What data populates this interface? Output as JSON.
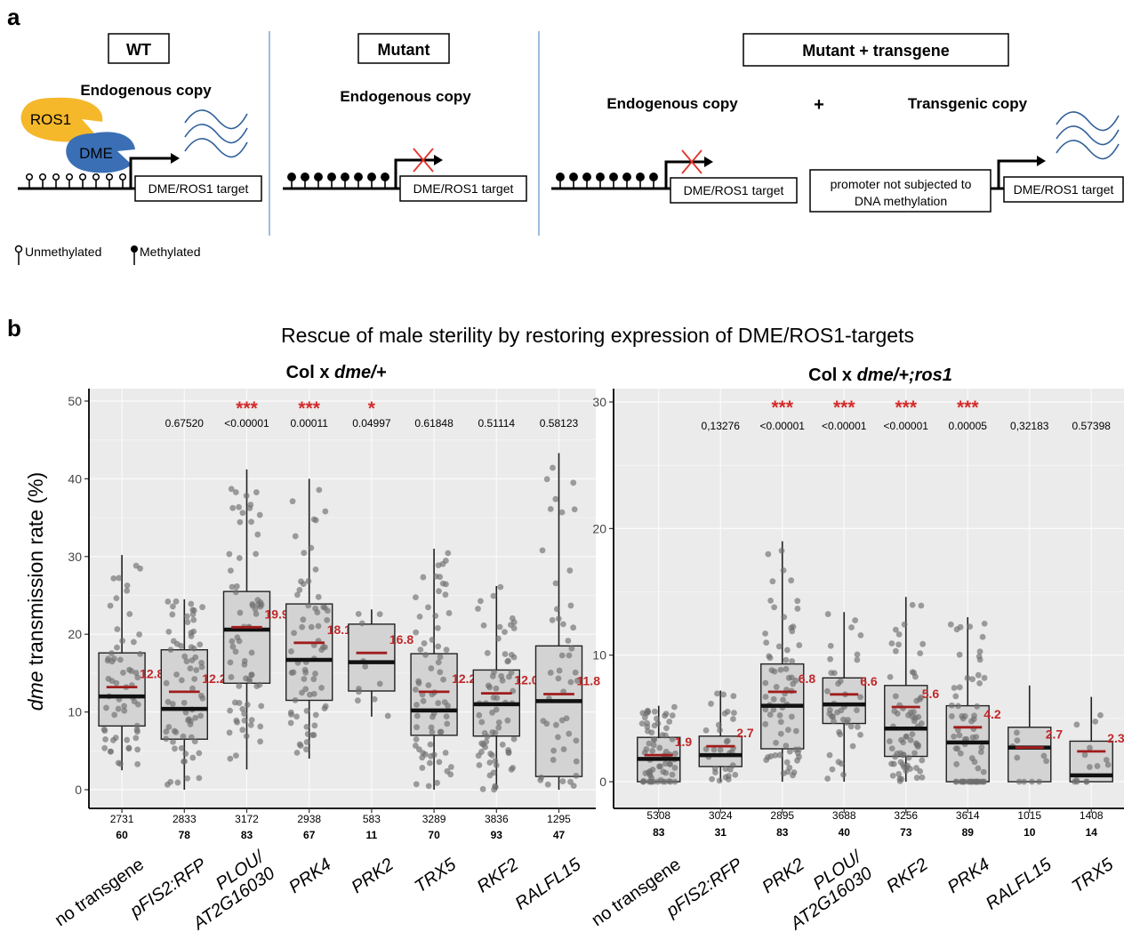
{
  "panel_labels": {
    "a": "a",
    "b": "b"
  },
  "schematic": {
    "wt_title": "WT",
    "mutant_title": "Mutant",
    "mutant_transgene_title": "Mutant + transgene",
    "endogenous_label": "Endogenous copy",
    "transgenic_label": "Transgenic copy",
    "plus": "+",
    "ros1": "ROS1",
    "dme": "DME",
    "target_label": "DME/ROS1 target",
    "promoter_line1": "promoter not subjected to",
    "promoter_line2": "DNA methylation",
    "legend_unmethylated": "Unmethylated",
    "legend_methylated": "Methylated",
    "colors": {
      "ros1": "#f5b82a",
      "dme": "#3a6fb5",
      "divider": "#7fa7d4",
      "cross": "#e0352b",
      "transcript": "#2f5f9a"
    }
  },
  "chart_title": "Rescue of male sterility by restoring expression of DME/ROS1-targets",
  "y_axis_label_italic": "dme",
  "y_axis_label_rest": " transmission rate (%)",
  "chart_data": [
    {
      "type": "box",
      "title_plain": "Col x ",
      "title_italic": "dme/+",
      "ylim": [
        0,
        50
      ],
      "yticks": [
        0,
        10,
        20,
        30,
        40,
        50
      ],
      "categories": [
        "no transgene",
        "pFIS2:RFP",
        "PLOU/\nAT2G16030",
        "PRK4",
        "PRK2",
        "TRX5",
        "RKF2",
        "RALFL15"
      ],
      "italic_categories": [
        false,
        true,
        true,
        true,
        true,
        true,
        true,
        true
      ],
      "pvalues": [
        "",
        "0.67520",
        "<0.00001",
        "0.00011",
        "0.04997",
        "0.61848",
        "0.51114",
        "0.58123"
      ],
      "stars": [
        "",
        "",
        "***",
        "***",
        "*",
        "",
        "",
        ""
      ],
      "means": [
        12.8,
        12.2,
        19.9,
        18.1,
        16.8,
        12.2,
        12.0,
        11.8
      ],
      "n_seeds": [
        2731,
        2833,
        3172,
        2938,
        583,
        3289,
        3836,
        1295
      ],
      "n_plants": [
        60,
        78,
        83,
        67,
        11,
        70,
        93,
        47
      ],
      "boxes": [
        {
          "q1": 8.2,
          "median": 12.0,
          "q3": 17.6,
          "min": 2.5,
          "max": 30.2,
          "mean": 13.2
        },
        {
          "q1": 6.5,
          "median": 10.4,
          "q3": 18.0,
          "min": 0,
          "max": 24.5,
          "mean": 12.6
        },
        {
          "q1": 13.7,
          "median": 20.6,
          "q3": 25.5,
          "min": 2.6,
          "max": 41.2,
          "mean": 20.9
        },
        {
          "q1": 11.5,
          "median": 16.7,
          "q3": 23.9,
          "min": 4.0,
          "max": 40.0,
          "mean": 18.9
        },
        {
          "q1": 12.7,
          "median": 16.4,
          "q3": 21.3,
          "min": 9.4,
          "max": 23.2,
          "mean": 17.6
        },
        {
          "q1": 7.0,
          "median": 10.2,
          "q3": 17.5,
          "min": 0,
          "max": 31.0,
          "mean": 12.6
        },
        {
          "q1": 6.9,
          "median": 11.0,
          "q3": 15.4,
          "min": 0,
          "max": 26.2,
          "mean": 12.4
        },
        {
          "q1": 1.7,
          "median": 11.4,
          "q3": 18.5,
          "min": 0,
          "max": 43.3,
          "mean": 12.3
        }
      ]
    },
    {
      "type": "box",
      "title_plain": "Col x ",
      "title_italic": "dme/+;ros1",
      "ylim": [
        0,
        30
      ],
      "yticks": [
        0,
        10,
        20,
        30
      ],
      "categories": [
        "no transgene",
        "pFIS2:RFP",
        "PRK2",
        "PLOU/\nAT2G16030",
        "RKF2",
        "PRK4",
        "RALFL15",
        "TRX5"
      ],
      "italic_categories": [
        false,
        true,
        true,
        true,
        true,
        true,
        true,
        true
      ],
      "pvalues": [
        "",
        "0,13276",
        "<0.00001",
        "<0.00001",
        "<0.00001",
        "0.00005",
        "0,32183",
        "0.57398"
      ],
      "stars": [
        "",
        "",
        "***",
        "***",
        "***",
        "***",
        "",
        ""
      ],
      "means": [
        1.9,
        2.7,
        6.8,
        6.6,
        5.6,
        4.2,
        2.7,
        2.3
      ],
      "n_seeds": [
        5308,
        3024,
        2895,
        3688,
        3256,
        3614,
        1015,
        1408
      ],
      "n_plants": [
        83,
        31,
        83,
        40,
        73,
        89,
        10,
        14
      ],
      "boxes": [
        {
          "q1": 0,
          "median": 1.8,
          "q3": 3.5,
          "min": 0,
          "max": 6.0,
          "mean": 2.1
        },
        {
          "q1": 1.2,
          "median": 2.1,
          "q3": 3.6,
          "min": 0,
          "max": 7.2,
          "mean": 2.8
        },
        {
          "q1": 2.6,
          "median": 6.0,
          "q3": 9.3,
          "min": 0,
          "max": 19.0,
          "mean": 7.1
        },
        {
          "q1": 4.6,
          "median": 6.1,
          "q3": 8.2,
          "min": 0,
          "max": 13.4,
          "mean": 6.9
        },
        {
          "q1": 2.0,
          "median": 4.2,
          "q3": 7.6,
          "min": 0,
          "max": 14.6,
          "mean": 5.9
        },
        {
          "q1": 0,
          "median": 3.1,
          "q3": 6.0,
          "min": 0,
          "max": 13.0,
          "mean": 4.3
        },
        {
          "q1": 0,
          "median": 2.7,
          "q3": 4.3,
          "min": 0,
          "max": 7.6,
          "mean": 2.7
        },
        {
          "q1": 0,
          "median": 0.5,
          "q3": 3.2,
          "min": 0,
          "max": 6.7,
          "mean": 2.4
        }
      ]
    }
  ],
  "colors": {
    "panel_bg": "#ebebeb",
    "box_fill": "#d3d3d3",
    "box_stroke": "#222222",
    "median": "#111111",
    "mean_line": "#a01c1c",
    "mean_label": "#c0282a",
    "star": "#d52a2a",
    "jitter": "#6e6e6e"
  }
}
